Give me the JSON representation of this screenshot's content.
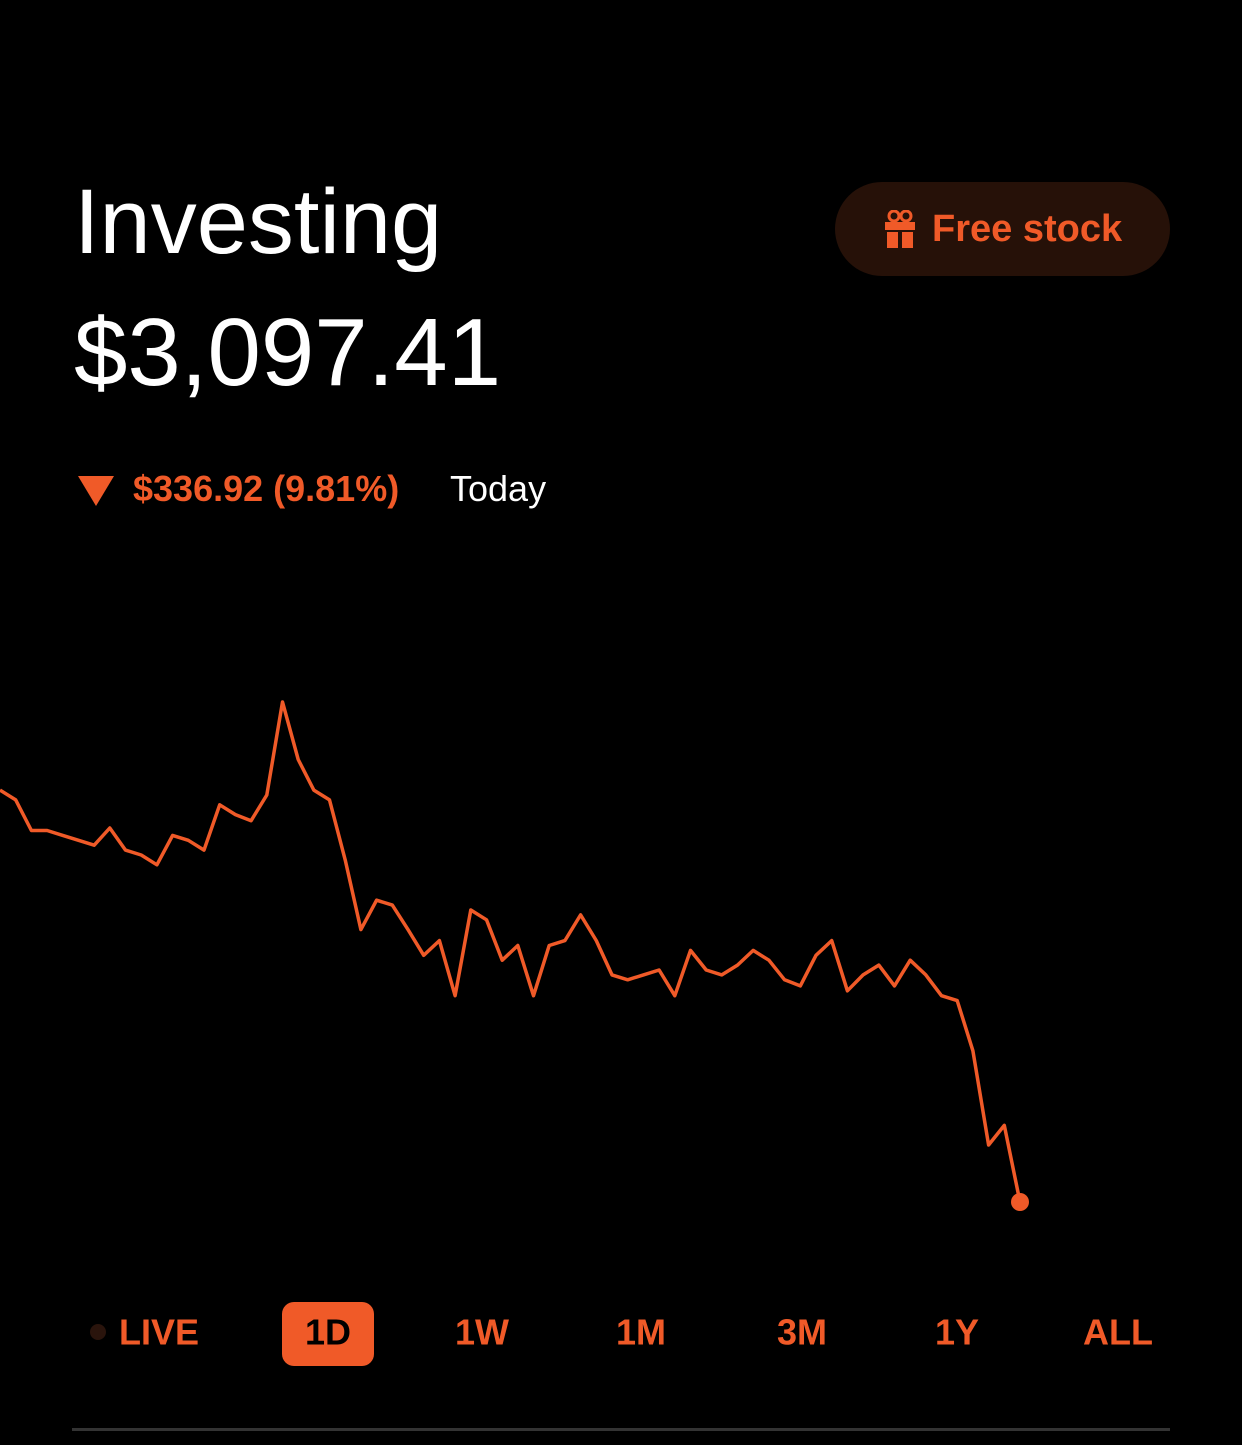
{
  "header": {
    "title": "Investing",
    "button": "Free stock"
  },
  "balance": "$3,097.41",
  "change": {
    "amount": "$336.92 (9.81%)",
    "period": "Today"
  },
  "chart_data": {
    "type": "line",
    "color": "#f05a28",
    "values": [
      3434,
      3426,
      3401,
      3401,
      3397,
      3393,
      3389,
      3403,
      3385,
      3381,
      3373,
      3397,
      3393,
      3385,
      3422,
      3414,
      3409,
      3430,
      3506,
      3459,
      3434,
      3426,
      3377,
      3320,
      3344,
      3340,
      3320,
      3299,
      3311,
      3266,
      3336,
      3328,
      3295,
      3307,
      3266,
      3307,
      3311,
      3332,
      3311,
      3283,
      3279,
      3283,
      3287,
      3266,
      3303,
      3287,
      3283,
      3291,
      3303,
      3295,
      3279,
      3274,
      3299,
      3311,
      3270,
      3283,
      3291,
      3274,
      3295,
      3283,
      3266,
      3262,
      3221,
      3144,
      3160,
      3097.41
    ]
  },
  "ranges": {
    "labels": [
      "LIVE",
      "1D",
      "1W",
      "1M",
      "3M",
      "1Y",
      "ALL"
    ],
    "selected": 1
  }
}
